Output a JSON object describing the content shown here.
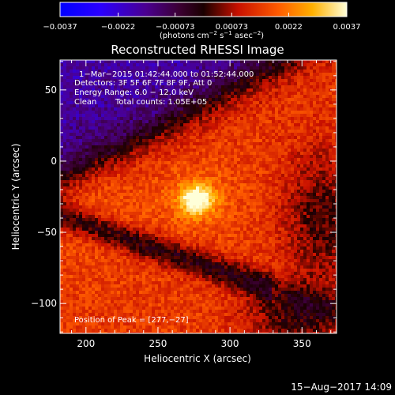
{
  "chart_data": {
    "type": "heatmap",
    "title": "Reconstructed RHESSI Image",
    "xlabel": "Heliocentric X (arcsec)",
    "ylabel": "Heliocentric Y (arcsec)",
    "xlim": [
      182,
      374
    ],
    "ylim": [
      -121,
      71
    ],
    "x_ticks": [
      200,
      250,
      300,
      350
    ],
    "y_ticks": [
      50,
      0,
      -50,
      -100
    ],
    "x_tick_labels": [
      "200",
      "250",
      "300",
      "350"
    ],
    "y_tick_labels": [
      "50",
      "0",
      "−50",
      "−100"
    ],
    "colorbar": {
      "range": [
        -0.0037,
        0.0037
      ],
      "ticks": [
        -0.0037,
        -0.0022,
        -0.00073,
        0.00073,
        0.0022,
        0.0037
      ],
      "tick_labels": [
        "−0.0037",
        "−0.0022",
        "−0.00073",
        "0.00073",
        "0.0022",
        "0.0037"
      ],
      "units_main": "(photons cm",
      "units_exp1": "−2",
      "units_mid1": " s",
      "units_exp2": "−1",
      "units_mid2": " asec",
      "units_exp3": "−2",
      "units_end": ")"
    },
    "peak": {
      "x": 277,
      "y": -27,
      "value": 0.0037
    },
    "annotations": {
      "time_range": "1−Mar−2015 01:42:44.000 to 01:52:44.000",
      "detectors": "Detectors: 3F 5F 6F 7F 8F 9F, Att 0",
      "energy": "Energy Range: 6.0 − 12.0 keV",
      "clean": "Clean",
      "total_counts": "Total counts: 1.05E+05",
      "peak_position": "Position of Peak = [277,−27]"
    },
    "timestamp": "15−Aug−2017 14:09",
    "colors": {
      "background": "#000000",
      "text": "#ffffff"
    }
  }
}
